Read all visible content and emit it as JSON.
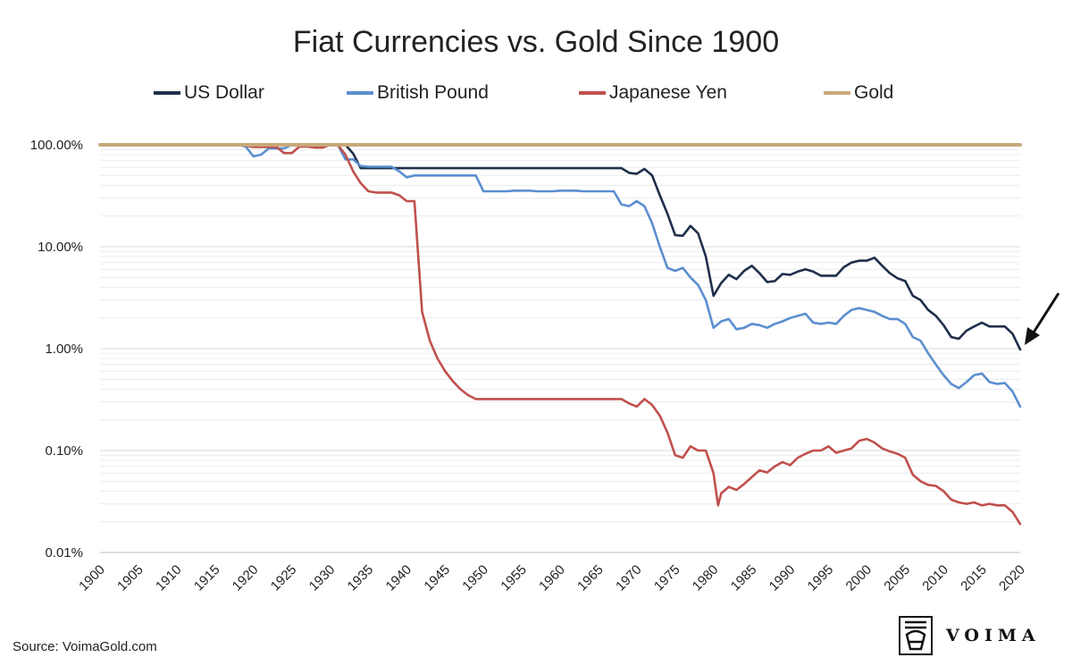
{
  "chart_data": {
    "type": "line",
    "title": "Fiat Currencies vs. Gold Since 1900",
    "xlabel": "",
    "ylabel": "",
    "y_scale": "log",
    "ylim": [
      0.01,
      100
    ],
    "y_ticks": [
      {
        "value": 100,
        "label": "100.00%"
      },
      {
        "value": 10,
        "label": "10.00%"
      },
      {
        "value": 1,
        "label": "1.00%"
      },
      {
        "value": 0.1,
        "label": "0.10%"
      },
      {
        "value": 0.01,
        "label": "0.01%"
      }
    ],
    "x_ticks": [
      "1900",
      "1905",
      "1910",
      "1915",
      "1920",
      "1925",
      "1930",
      "1935",
      "1940",
      "1945",
      "1950",
      "1955",
      "1960",
      "1965",
      "1970",
      "1975",
      "1980",
      "1985",
      "1990",
      "1995",
      "2000",
      "2005",
      "2010",
      "2015",
      "2020"
    ],
    "xlim": [
      1900,
      2020
    ],
    "grid": "horizontal",
    "legend_position": "top",
    "series": [
      {
        "name": "US Dollar",
        "color": "#1f2f4a",
        "points": [
          [
            1900,
            100
          ],
          [
            1910,
            100
          ],
          [
            1920,
            100
          ],
          [
            1932,
            100
          ],
          [
            1933,
            82
          ],
          [
            1934,
            59
          ],
          [
            1935,
            59
          ],
          [
            1940,
            59
          ],
          [
            1960,
            59
          ],
          [
            1968,
            59
          ],
          [
            1969,
            53
          ],
          [
            1970,
            52
          ],
          [
            1971,
            58
          ],
          [
            1972,
            50
          ],
          [
            1973,
            32
          ],
          [
            1974,
            21
          ],
          [
            1975,
            13
          ],
          [
            1976,
            12.8
          ],
          [
            1977,
            16
          ],
          [
            1978,
            13.5
          ],
          [
            1979,
            8
          ],
          [
            1980,
            3.3
          ],
          [
            1981,
            4.4
          ],
          [
            1982,
            5.3
          ],
          [
            1983,
            4.8
          ],
          [
            1984,
            5.8
          ],
          [
            1985,
            6.5
          ],
          [
            1986,
            5.5
          ],
          [
            1987,
            4.5
          ],
          [
            1988,
            4.6
          ],
          [
            1989,
            5.4
          ],
          [
            1990,
            5.3
          ],
          [
            1991,
            5.7
          ],
          [
            1992,
            6
          ],
          [
            1993,
            5.7
          ],
          [
            1994,
            5.2
          ],
          [
            1995,
            5.2
          ],
          [
            1996,
            5.2
          ],
          [
            1997,
            6.3
          ],
          [
            1998,
            7
          ],
          [
            1999,
            7.3
          ],
          [
            2000,
            7.3
          ],
          [
            2001,
            7.8
          ],
          [
            2002,
            6.5
          ],
          [
            2003,
            5.5
          ],
          [
            2004,
            4.9
          ],
          [
            2005,
            4.6
          ],
          [
            2006,
            3.3
          ],
          [
            2007,
            3
          ],
          [
            2008,
            2.4
          ],
          [
            2009,
            2.1
          ],
          [
            2010,
            1.7
          ],
          [
            2011,
            1.3
          ],
          [
            2012,
            1.25
          ],
          [
            2013,
            1.5
          ],
          [
            2014,
            1.65
          ],
          [
            2015,
            1.8
          ],
          [
            2016,
            1.65
          ],
          [
            2017,
            1.65
          ],
          [
            2018,
            1.65
          ],
          [
            2019,
            1.4
          ],
          [
            2020,
            0.98
          ]
        ]
      },
      {
        "name": "British Pound",
        "color": "#5b8fcf",
        "points": [
          [
            1900,
            100
          ],
          [
            1914,
            100
          ],
          [
            1918,
            100
          ],
          [
            1919,
            96
          ],
          [
            1920,
            77
          ],
          [
            1921,
            80
          ],
          [
            1922,
            92
          ],
          [
            1923,
            92
          ],
          [
            1924,
            92
          ],
          [
            1925,
            100
          ],
          [
            1931,
            100
          ],
          [
            1932,
            72
          ],
          [
            1933,
            72
          ],
          [
            1934,
            62
          ],
          [
            1935,
            61
          ],
          [
            1938,
            61
          ],
          [
            1939,
            55
          ],
          [
            1940,
            48
          ],
          [
            1941,
            50
          ],
          [
            1949,
            50
          ],
          [
            1950,
            35
          ],
          [
            1953,
            35
          ],
          [
            1954,
            35.5
          ],
          [
            1956,
            35.5
          ],
          [
            1957,
            35
          ],
          [
            1959,
            35
          ],
          [
            1960,
            35.5
          ],
          [
            1962,
            35.5
          ],
          [
            1963,
            35
          ],
          [
            1967,
            35
          ],
          [
            1968,
            26
          ],
          [
            1969,
            25
          ],
          [
            1970,
            28
          ],
          [
            1971,
            25
          ],
          [
            1972,
            17
          ],
          [
            1973,
            10
          ],
          [
            1974,
            6.2
          ],
          [
            1975,
            5.8
          ],
          [
            1976,
            6.2
          ],
          [
            1977,
            5
          ],
          [
            1978,
            4.2
          ],
          [
            1979,
            3
          ],
          [
            1980,
            1.6
          ],
          [
            1981,
            1.85
          ],
          [
            1982,
            1.95
          ],
          [
            1983,
            1.55
          ],
          [
            1984,
            1.6
          ],
          [
            1985,
            1.75
          ],
          [
            1986,
            1.7
          ],
          [
            1987,
            1.6
          ],
          [
            1988,
            1.75
          ],
          [
            1989,
            1.85
          ],
          [
            1990,
            2
          ],
          [
            1991,
            2.1
          ],
          [
            1992,
            2.2
          ],
          [
            1993,
            1.8
          ],
          [
            1994,
            1.75
          ],
          [
            1995,
            1.8
          ],
          [
            1996,
            1.75
          ],
          [
            1997,
            2.1
          ],
          [
            1998,
            2.4
          ],
          [
            1999,
            2.5
          ],
          [
            2000,
            2.4
          ],
          [
            2001,
            2.3
          ],
          [
            2002,
            2.1
          ],
          [
            2003,
            1.95
          ],
          [
            2004,
            1.95
          ],
          [
            2005,
            1.75
          ],
          [
            2006,
            1.3
          ],
          [
            2007,
            1.2
          ],
          [
            2008,
            0.9
          ],
          [
            2009,
            0.7
          ],
          [
            2010,
            0.55
          ],
          [
            2011,
            0.45
          ],
          [
            2012,
            0.41
          ],
          [
            2013,
            0.47
          ],
          [
            2014,
            0.55
          ],
          [
            2015,
            0.57
          ],
          [
            2016,
            0.47
          ],
          [
            2017,
            0.45
          ],
          [
            2018,
            0.46
          ],
          [
            2019,
            0.38
          ],
          [
            2020,
            0.27
          ]
        ]
      },
      {
        "name": "Japanese Yen",
        "color": "#c0504d",
        "points": [
          [
            1900,
            100
          ],
          [
            1918,
            100
          ],
          [
            1919,
            98
          ],
          [
            1920,
            95
          ],
          [
            1923,
            95
          ],
          [
            1924,
            83
          ],
          [
            1925,
            83
          ],
          [
            1926,
            96
          ],
          [
            1927,
            96
          ],
          [
            1928,
            94
          ],
          [
            1929,
            94
          ],
          [
            1930,
            100
          ],
          [
            1931,
            100
          ],
          [
            1932,
            80
          ],
          [
            1933,
            55
          ],
          [
            1934,
            42
          ],
          [
            1935,
            35
          ],
          [
            1936,
            34
          ],
          [
            1938,
            34
          ],
          [
            1939,
            32
          ],
          [
            1940,
            28
          ],
          [
            1941,
            28
          ],
          [
            1942,
            2.3
          ],
          [
            1943,
            1.2
          ],
          [
            1944,
            0.8
          ],
          [
            1945,
            0.6
          ],
          [
            1946,
            0.48
          ],
          [
            1947,
            0.4
          ],
          [
            1948,
            0.35
          ],
          [
            1949,
            0.32
          ],
          [
            1968,
            0.32
          ],
          [
            1969,
            0.29
          ],
          [
            1970,
            0.27
          ],
          [
            1971,
            0.32
          ],
          [
            1972,
            0.28
          ],
          [
            1973,
            0.22
          ],
          [
            1974,
            0.15
          ],
          [
            1975,
            0.09
          ],
          [
            1976,
            0.085
          ],
          [
            1977,
            0.11
          ],
          [
            1978,
            0.1
          ],
          [
            1979,
            0.1
          ],
          [
            1980,
            0.06
          ],
          [
            1980.6,
            0.029
          ],
          [
            1981,
            0.038
          ],
          [
            1982,
            0.044
          ],
          [
            1983,
            0.041
          ],
          [
            1984,
            0.047
          ],
          [
            1985,
            0.055
          ],
          [
            1986,
            0.064
          ],
          [
            1987,
            0.061
          ],
          [
            1988,
            0.07
          ],
          [
            1989,
            0.077
          ],
          [
            1990,
            0.072
          ],
          [
            1991,
            0.085
          ],
          [
            1992,
            0.093
          ],
          [
            1993,
            0.1
          ],
          [
            1994,
            0.1
          ],
          [
            1995,
            0.11
          ],
          [
            1996,
            0.095
          ],
          [
            1997,
            0.1
          ],
          [
            1998,
            0.105
          ],
          [
            1999,
            0.125
          ],
          [
            2000,
            0.13
          ],
          [
            2001,
            0.12
          ],
          [
            2002,
            0.105
          ],
          [
            2003,
            0.098
          ],
          [
            2004,
            0.093
          ],
          [
            2005,
            0.085
          ],
          [
            2006,
            0.058
          ],
          [
            2007,
            0.05
          ],
          [
            2008,
            0.046
          ],
          [
            2009,
            0.045
          ],
          [
            2010,
            0.04
          ],
          [
            2011,
            0.033
          ],
          [
            2012,
            0.031
          ],
          [
            2013,
            0.03
          ],
          [
            2014,
            0.031
          ],
          [
            2015,
            0.029
          ],
          [
            2016,
            0.03
          ],
          [
            2017,
            0.029
          ],
          [
            2018,
            0.029
          ],
          [
            2019,
            0.025
          ],
          [
            2020,
            0.019
          ]
        ]
      },
      {
        "name": "Gold",
        "color": "#c9a878",
        "points": [
          [
            1900,
            100
          ],
          [
            2020,
            100
          ]
        ]
      }
    ]
  },
  "source_text": "Source: VoimaGold.com",
  "logo": {
    "name": "VOIMA",
    "icon": "voima-emblem-icon"
  },
  "arrow_icon": "pointer-arrow-icon"
}
